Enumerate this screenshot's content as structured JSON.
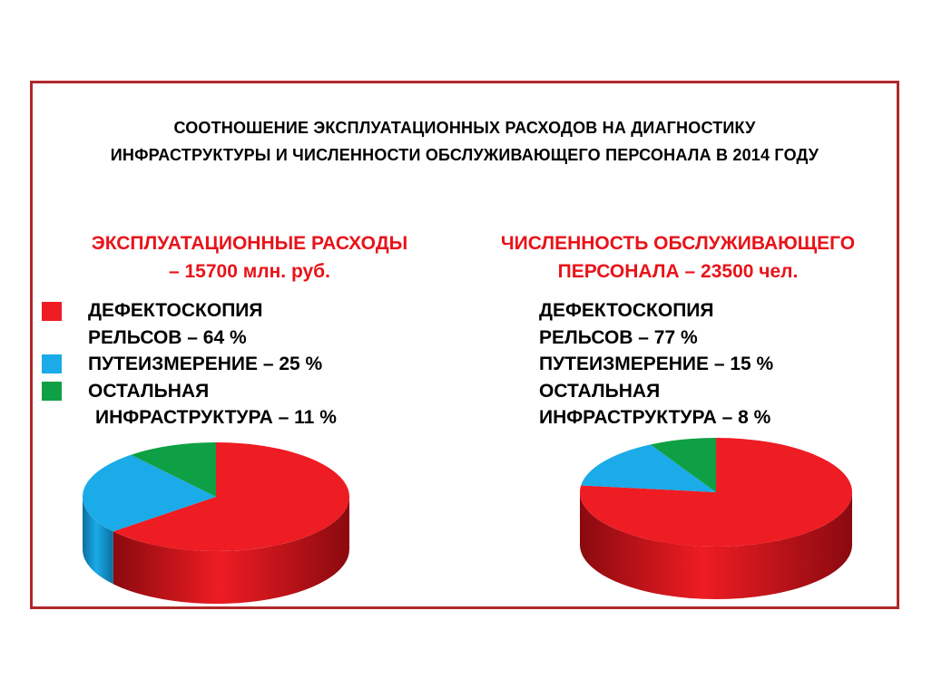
{
  "title": {
    "line1": "СООТНОШЕНИЕ ЭКСПЛУАТАЦИОННЫХ РАСХОДОВ НА ДИАГНОСТИКУ",
    "line2": "ИНФРАСТРУКТУРЫ И ЧИСЛЕННОСТИ ОБСЛУЖИВАЮЩЕГО  ПЕРСОНАЛА  В 2014 ГОДУ"
  },
  "colors": {
    "red": "#ee1c23",
    "blue": "#1aabe8",
    "green": "#0fa045",
    "frame": "#b0282b",
    "subtitle": "#e8131a"
  },
  "legend_swatch_icons": [
    "red-square-icon",
    "blue-square-icon",
    "green-square-icon"
  ],
  "chart_data": [
    {
      "type": "pie",
      "title_line1": "ЭКСПЛУАТАЦИОННЫЕ РАСХОДЫ",
      "title_line2": "– 15700 млн. руб.",
      "labels": [
        "ДЕФЕКТОСКОПИЯ РЕЛЬСОВ",
        "ПУТЕИЗМЕРЕНИЕ",
        "ОСТАЛЬНАЯ ИНФРАСТРУКТУРА"
      ],
      "values": [
        64,
        25,
        11
      ],
      "legend_lines": [
        "ДЕФЕКТОСКОПИЯ",
        "РЕЛЬСОВ  – 64 %",
        "ПУТЕИЗМЕРЕНИЕ  – 25 %",
        "ОСТАЛЬНАЯ",
        "ИНФРАСТРУКТУРА  – 11 %"
      ]
    },
    {
      "type": "pie",
      "title_line1": "ЧИСЛЕННОСТЬ ОБСЛУЖИВАЮЩЕГО",
      "title_line2": "ПЕРСОНАЛА  – 23500 чел.",
      "labels": [
        "ДЕФЕКТОСКОПИЯ РЕЛЬСОВ",
        "ПУТЕИЗМЕРЕНИЕ",
        "ОСТАЛЬНАЯ ИНФРАСТРУКТУРА"
      ],
      "values": [
        77,
        15,
        8
      ],
      "legend_lines": [
        "ДЕФЕКТОСКОПИЯ",
        "РЕЛЬСОВ  – 77 %",
        "ПУТЕИЗМЕРЕНИЕ  – 15 %",
        "ОСТАЛЬНАЯ",
        "ИНФРАСТРУКТУРА  – 8 %"
      ]
    }
  ]
}
